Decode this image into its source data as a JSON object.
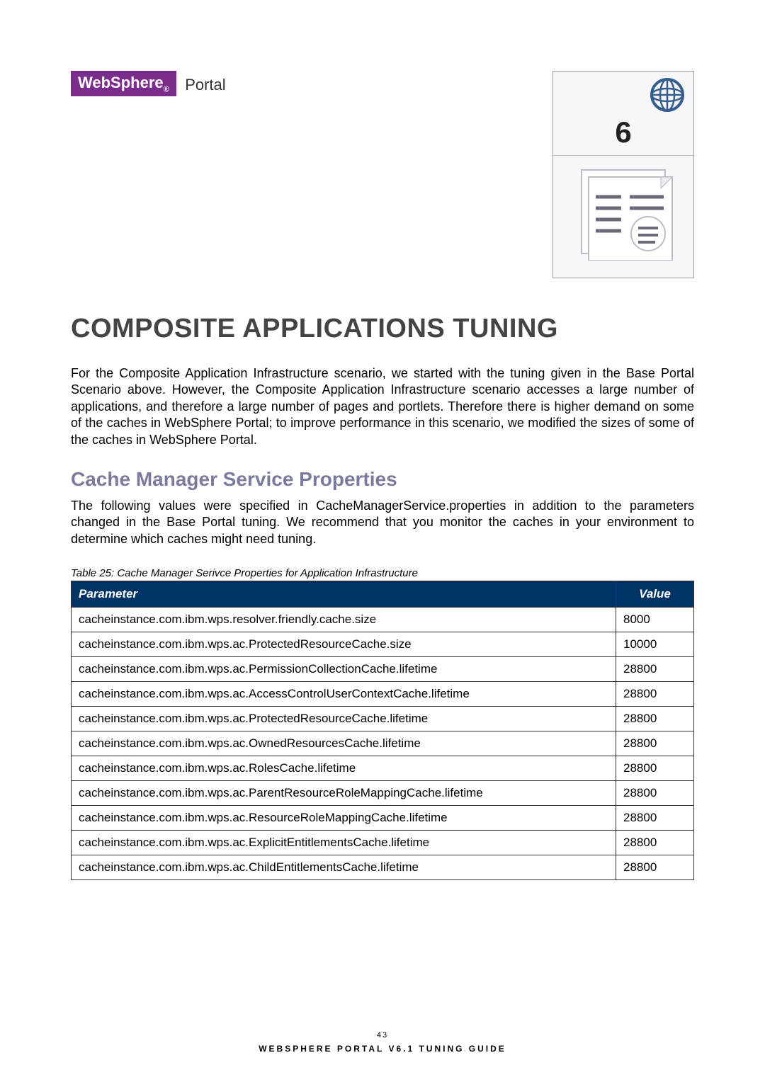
{
  "header": {
    "logo_brand": "WebSphere",
    "logo_sub": "®",
    "logo_product": "Portal",
    "chapter_number": "6"
  },
  "title": "COMPOSITE APPLICATIONS TUNING",
  "intro_paragraph": "For the Composite Application Infrastructure scenario, we started with the tuning given in the Base Portal Scenario above. However, the Composite Application Infrastructure scenario accesses a large number of applications, and therefore a large number of pages and portlets. Therefore there is higher demand on some of the caches in WebSphere Portal; to improve performance in this scenario, we modified the sizes of some of the caches in WebSphere Portal.",
  "section_heading": "Cache Manager Service Properties",
  "section_paragraph": "The following values were specified in CacheManagerService.properties in addition to the parameters changed in the Base Portal tuning. We recommend that you monitor the caches in your environment to determine which caches might need tuning.",
  "table": {
    "caption": "Table 25: Cache Manager Serivce Properties for Application Infrastructure",
    "columns": [
      "Parameter",
      "Value"
    ],
    "rows": [
      [
        "cacheinstance.com.ibm.wps.resolver.friendly.cache.size",
        "8000"
      ],
      [
        "cacheinstance.com.ibm.wps.ac.ProtectedResourceCache.size",
        "10000"
      ],
      [
        "cacheinstance.com.ibm.wps.ac.PermissionCollectionCache.lifetime",
        "28800"
      ],
      [
        "cacheinstance.com.ibm.wps.ac.AccessControlUserContextCache.lifetime",
        "28800"
      ],
      [
        "cacheinstance.com.ibm.wps.ac.ProtectedResourceCache.lifetime",
        "28800"
      ],
      [
        "cacheinstance.com.ibm.wps.ac.OwnedResourcesCache.lifetime",
        "28800"
      ],
      [
        "cacheinstance.com.ibm.wps.ac.RolesCache.lifetime",
        "28800"
      ],
      [
        "cacheinstance.com.ibm.wps.ac.ParentResourceRoleMappingCache.lifetime",
        "28800"
      ],
      [
        "cacheinstance.com.ibm.wps.ac.ResourceRoleMappingCache.lifetime",
        "28800"
      ],
      [
        "cacheinstance.com.ibm.wps.ac.ExplicitEntitlementsCache.lifetime",
        "28800"
      ],
      [
        "cacheinstance.com.ibm.wps.ac.ChildEntitlementsCache.lifetime",
        "28800"
      ]
    ]
  },
  "footer": {
    "page_number": "43",
    "doc_title": "WEBSPHERE PORTAL V6.1 TUNING GUIDE"
  },
  "colors": {
    "brand_purple": "#7b2d8e",
    "table_header_bg": "#003366",
    "section_heading": "#7a7a9c",
    "globe_stroke": "#355e8f",
    "doc_line": "#6a6a7a"
  }
}
